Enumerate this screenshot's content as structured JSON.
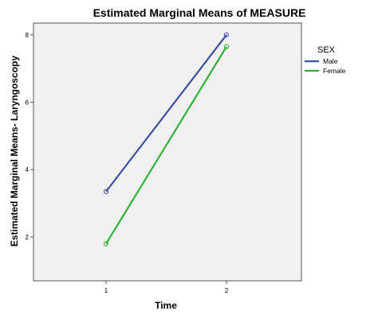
{
  "chart_data": {
    "type": "line",
    "title": "Estimated Marginal Means of MEASURE",
    "xlabel": "Time",
    "ylabel": "Estimated Marginal Means- Laryngoscopy",
    "categories": [
      "1",
      "2"
    ],
    "ylim": [
      0.7,
      8.35
    ],
    "yticks": [
      2,
      4,
      6,
      8
    ],
    "grid": false,
    "legend_title": "SEX",
    "legend_position": "right",
    "series": [
      {
        "name": "Male",
        "values": [
          3.35,
          8.0
        ],
        "color": "#3b4fa0"
      },
      {
        "name": "Female",
        "values": [
          1.8,
          7.65
        ],
        "color": "#2fb13a"
      }
    ]
  }
}
